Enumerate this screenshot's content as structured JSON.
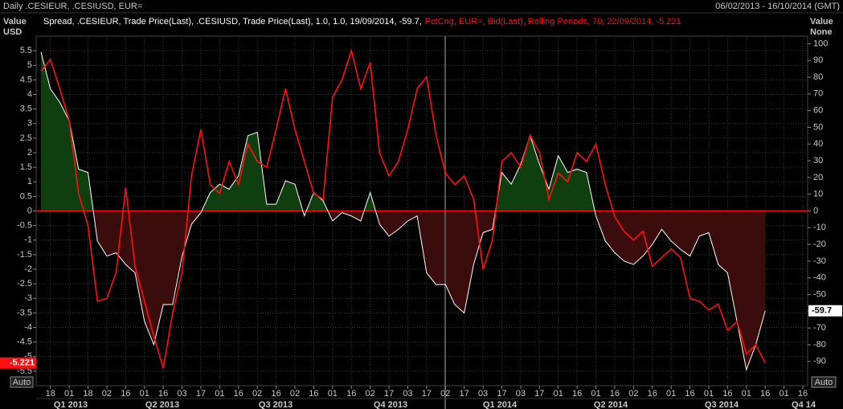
{
  "header": {
    "title": "Daily .CESIEUR, .CESIUSD, EUR=",
    "date_range": "06/02/2013 - 16/10/2014 (GMT)"
  },
  "controls": {
    "left_button": "Auto",
    "right_button": "Auto"
  },
  "chart_data": {
    "type": "line",
    "ylabel": [
      "Value",
      "USD"
    ],
    "y2label": [
      "Value",
      "None"
    ],
    "quarters": [
      "Q1 2013",
      "Q2 2013",
      "Q3 2013",
      "Q4 2013",
      "Q1 2014",
      "Q2 2014",
      "Q3 2014",
      "Q4 14"
    ],
    "categories": [
      null,
      "18",
      null,
      "01",
      null,
      "18",
      null,
      "02",
      null,
      "16",
      null,
      "01",
      null,
      "16",
      null,
      "03",
      null,
      "17",
      null,
      "01",
      null,
      "16",
      null,
      "02",
      null,
      "16",
      null,
      "02",
      null,
      "16",
      null,
      "01",
      null,
      "16",
      null,
      "02",
      null,
      "17",
      null,
      "03",
      null,
      "17",
      null,
      "02",
      null,
      "17",
      null,
      "03",
      null,
      "17",
      null,
      "03",
      null,
      "17",
      null,
      "01",
      null,
      "16",
      null,
      "01",
      null,
      "16",
      null,
      "02",
      null,
      "16",
      null,
      "01",
      null,
      "16",
      null,
      "01",
      null,
      "16",
      null,
      "01",
      null,
      "16",
      null,
      "01",
      null,
      "16"
    ],
    "ylim": [
      -6,
      6
    ],
    "yticks": [
      5.5,
      5,
      4.5,
      4,
      3.5,
      3,
      2.5,
      2,
      1.5,
      1,
      0.5,
      0,
      -0.5,
      -1,
      -1.5,
      -2,
      -2.5,
      -3,
      -3.5,
      -4,
      -4.5,
      -5,
      -5.5
    ],
    "y2lim": [
      -104.5,
      104.5
    ],
    "y2ticks": [
      100,
      90,
      80,
      70,
      60,
      50,
      40,
      30,
      20,
      10,
      0,
      -10,
      -20,
      -30,
      -40,
      -50,
      -60,
      -70,
      -80,
      -90
    ],
    "grid": true,
    "series": [
      {
        "name": "Spread, .CESIEUR, Trade Price(Last), .CESIUSD, Trade Price(Last),  1.0, 1.0, 19/09/2014, -59.7,",
        "color": "#ffffff",
        "axis": "y2",
        "fill_above": "#0f3f0f",
        "fill_below": "#3a0c0c",
        "values": [
          95,
          73,
          65,
          54,
          25,
          23,
          -18,
          -27,
          -25,
          -32,
          -37,
          -66,
          -80,
          -56,
          -56,
          -27,
          -8,
          -1,
          11,
          16,
          13,
          21,
          45,
          47,
          4,
          4,
          18,
          16,
          -3,
          11,
          6,
          -6,
          -1,
          -3,
          -6,
          11,
          -8,
          -15,
          -11,
          -6,
          -3,
          -37,
          -44,
          -44,
          -56,
          -61,
          -32,
          -13,
          -11,
          23,
          16,
          28,
          45,
          28,
          13,
          33,
          23,
          25,
          23,
          -3,
          -18,
          -25,
          -30,
          -32,
          -27,
          -20,
          -11,
          -18,
          -23,
          -27,
          -15,
          -13,
          -32,
          -37,
          -66,
          -95,
          -80,
          -59.7,
          null,
          null,
          null,
          null
        ]
      },
      {
        "name": "PctCng, EUR=, Bid(Last), Rolling Periods, 70, 22/09/2014, -5.221",
        "color": "#ff1010",
        "axis": "y",
        "values": [
          4.8,
          5.2,
          4.2,
          3.1,
          0.6,
          -0.5,
          -3.1,
          -3.0,
          -2.1,
          0.8,
          -1.9,
          -3.1,
          -4.3,
          -5.4,
          -3.5,
          -2.1,
          1.2,
          2.8,
          0.9,
          0.6,
          1.7,
          0.9,
          2.3,
          1.7,
          1.5,
          2.8,
          4.2,
          2.8,
          1.7,
          0.6,
          0.4,
          3.9,
          4.5,
          5.5,
          4.2,
          5.1,
          2.0,
          1.2,
          1.7,
          2.8,
          4.2,
          4.6,
          2.6,
          1.3,
          0.9,
          1.2,
          0.4,
          -2.0,
          -1.0,
          1.7,
          2.0,
          1.5,
          2.6,
          2.0,
          0.4,
          1.3,
          1.0,
          2.0,
          1.7,
          2.3,
          0.9,
          -0.2,
          -0.7,
          -1.0,
          -0.7,
          -1.9,
          -1.6,
          -1.3,
          -1.6,
          -3.0,
          -3.1,
          -3.4,
          -3.2,
          -4.1,
          -3.8,
          -4.9,
          -4.6,
          -5.221,
          null,
          null,
          null,
          null
        ]
      }
    ]
  }
}
